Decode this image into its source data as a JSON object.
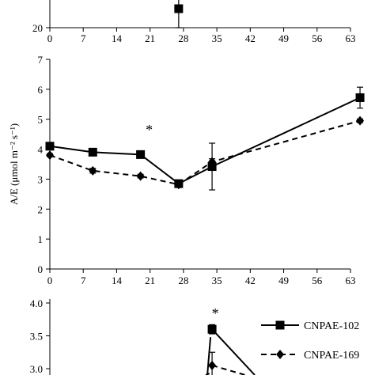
{
  "chart_data": [
    {
      "type": "line",
      "panel": "top (partially visible)",
      "xlim": [
        0,
        63
      ],
      "x_ticks": [
        0,
        7,
        14,
        21,
        28,
        35,
        42,
        49,
        56,
        63
      ],
      "y_ticks_visible": [
        20
      ],
      "series": [
        {
          "key": "cnpae102",
          "marker": "square",
          "line": "solid",
          "points": [
            {
              "x": 27,
              "y": 23,
              "err": 3
            }
          ]
        }
      ]
    },
    {
      "type": "line",
      "panel": "middle",
      "ylabel": "A/E (μmol m⁻² s⁻¹)",
      "xlim": [
        0,
        63
      ],
      "ylim": [
        0,
        7
      ],
      "x_ticks": [
        0,
        7,
        14,
        21,
        28,
        35,
        42,
        49,
        56,
        63
      ],
      "y_ticks": [
        0,
        1,
        2,
        3,
        4,
        5,
        6,
        7
      ],
      "annotations": [
        {
          "text": "*",
          "x": 21.5
        }
      ],
      "series": [
        {
          "key": "cnpae102",
          "marker": "square",
          "line": "solid",
          "points": [
            {
              "x": 0,
              "y": 4.1,
              "err": 0.1
            },
            {
              "x": 9,
              "y": 3.9,
              "err": 0.05
            },
            {
              "x": 19,
              "y": 3.82,
              "err": 0.06
            },
            {
              "x": 27,
              "y": 2.85,
              "err": 0.1
            },
            {
              "x": 34,
              "y": 3.42,
              "err": 0.78
            },
            {
              "x": 65,
              "y": 5.72,
              "err": 0.35
            }
          ]
        },
        {
          "key": "cnpae169",
          "marker": "diamond",
          "line": "dashed",
          "points": [
            {
              "x": 0,
              "y": 3.8,
              "err": 0.05
            },
            {
              "x": 9,
              "y": 3.28,
              "err": 0.08
            },
            {
              "x": 19,
              "y": 3.1,
              "err": 0.06
            },
            {
              "x": 27,
              "y": 2.82,
              "err": 0.1
            },
            {
              "x": 34,
              "y": 3.58,
              "err": 0.1
            },
            {
              "x": 65,
              "y": 4.95,
              "err": 0.06
            }
          ]
        }
      ]
    },
    {
      "type": "line",
      "panel": "bottom (partially visible)",
      "xlim": [
        0,
        63
      ],
      "y_ticks_visible": [
        "4.0",
        "3.5",
        "3.0"
      ],
      "annotations": [
        {
          "text": "*"
        }
      ],
      "legend": {
        "placement": "right",
        "entries": [
          {
            "key": "cnpae102",
            "label": "CNPAE-102",
            "marker": "square",
            "line": "solid"
          },
          {
            "key": "cnpae169",
            "label": "CNPAE-169",
            "marker": "diamond",
            "line": "dashed"
          }
        ]
      },
      "series": [
        {
          "key": "cnpae102",
          "marker": "square",
          "line": "solid",
          "points": [
            {
              "x": 34,
              "y": 3.6,
              "err": 0.07
            }
          ]
        },
        {
          "key": "cnpae169",
          "marker": "diamond",
          "line": "dashed",
          "points": [
            {
              "x": 34,
              "y": 3.05,
              "err": 0.2
            }
          ]
        }
      ]
    }
  ]
}
